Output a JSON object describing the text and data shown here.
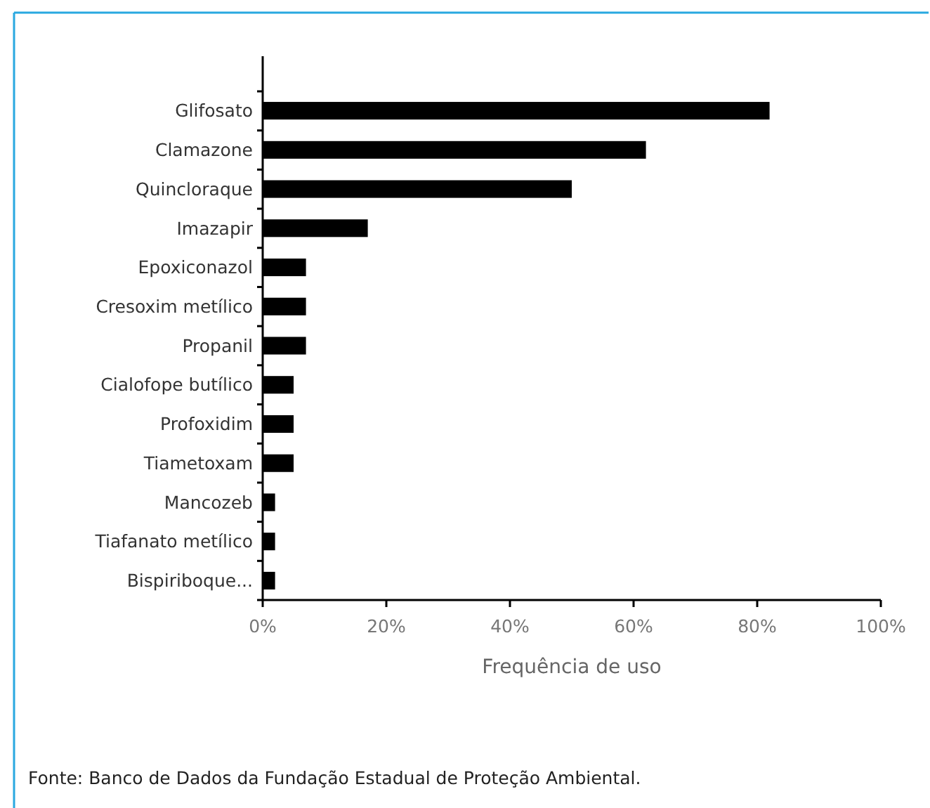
{
  "chart_data": {
    "type": "bar",
    "orientation": "horizontal",
    "xlabel": "Frequência de uso",
    "categories": [
      "Glifosato",
      "Clamazone",
      "Quincloraque",
      "Imazapir",
      "Epoxiconazol",
      "Cresoxim  metílico",
      "Propanil",
      "Cialofope butílico",
      "Profoxidim",
      "Tiametoxam",
      "Mancozeb",
      "Tiafanato metílico",
      "Bispiriboque..."
    ],
    "values": [
      82,
      62,
      50,
      17,
      7,
      7,
      7,
      5,
      5,
      5,
      2,
      2,
      2
    ],
    "color": "#000000",
    "xlim": [
      0,
      100
    ],
    "xticks": [
      {
        "value": 0,
        "label": "0%"
      },
      {
        "value": 20,
        "label": "20%"
      },
      {
        "value": 40,
        "label": "40%"
      },
      {
        "value": 60,
        "label": "60%"
      },
      {
        "value": 80,
        "label": "80%"
      },
      {
        "value": 100,
        "label": "100%"
      }
    ],
    "grid": false,
    "annotations": [
      "Fonte: Banco de Dados da Fundação Estadual de Proteção Ambiental."
    ]
  }
}
